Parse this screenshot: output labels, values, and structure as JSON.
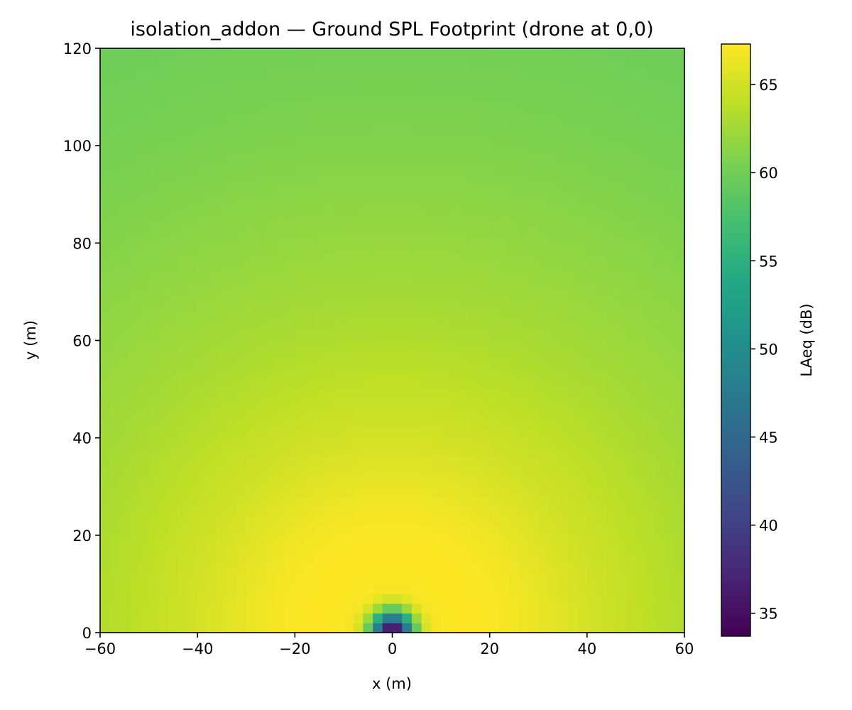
{
  "chart_data": {
    "type": "heatmap",
    "title": "isolation_addon — Ground SPL Footprint (drone at 0,0)",
    "xlabel": "x (m)",
    "ylabel": "y (m)",
    "xlim": [
      -60,
      60
    ],
    "ylim": [
      0,
      120
    ],
    "xticks": [
      -60,
      -40,
      -20,
      0,
      20,
      40,
      60
    ],
    "xtick_labels": [
      "−60",
      "−40",
      "−20",
      "0",
      "20",
      "40",
      "60"
    ],
    "yticks": [
      0,
      20,
      40,
      60,
      80,
      100,
      120
    ],
    "ytick_labels": [
      "0",
      "20",
      "40",
      "60",
      "80",
      "100",
      "120"
    ],
    "grid": false,
    "colormap": "viridis",
    "colorbar": {
      "label": "LAeq (dB)",
      "range": [
        33.7,
        67.3
      ],
      "ticks": [
        35,
        40,
        45,
        50,
        55,
        60,
        65
      ],
      "tick_labels": [
        "35",
        "40",
        "45",
        "50",
        "55",
        "60",
        "65"
      ]
    },
    "cell_size_m": 2,
    "drone_position": [
      0,
      0
    ],
    "source_level_db": 67.3,
    "min_level_db": 33.7,
    "field_model": "LAeq peaks ~67 dB in a ring about 15–25 m from the drone, falls to ~57 dB at the far corners, and drops sharply to ~34 dB directly under the drone at (0,0)"
  }
}
